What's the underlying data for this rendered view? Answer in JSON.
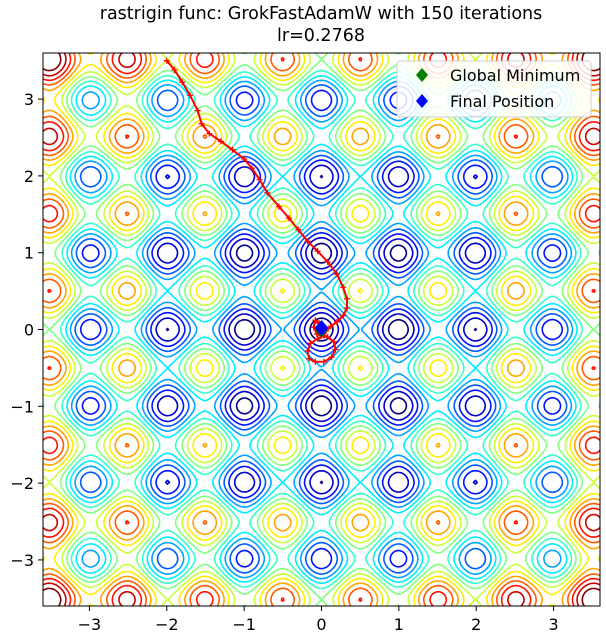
{
  "chart_data": {
    "type": "contour",
    "title": "rastrigin func: GrokFastAdamW with 150 iterations",
    "subtitle": "lr=0.2768",
    "xlabel": "",
    "ylabel": "",
    "xlim": [
      -3.6,
      3.6
    ],
    "ylim": [
      -3.6,
      3.6
    ],
    "xticks": [
      -3,
      -2,
      -1,
      0,
      1,
      2,
      3
    ],
    "yticks": [
      -3,
      -2,
      -1,
      0,
      1,
      2,
      3
    ],
    "xtick_labels": [
      "−3",
      "−2",
      "−1",
      "0",
      "1",
      "2",
      "3"
    ],
    "ytick_labels": [
      "−3",
      "−2",
      "−1",
      "0",
      "1",
      "2",
      "3"
    ],
    "grid": false,
    "function": "rastrigin",
    "colormap": "jet",
    "legend": {
      "position": "top-right",
      "entries": [
        {
          "label": "Global Minimum",
          "color": "#008000",
          "marker": "diamond"
        },
        {
          "label": "Final Position",
          "color": "#0000ff",
          "marker": "diamond"
        }
      ]
    },
    "series": [
      {
        "name": "Global Minimum",
        "type": "point",
        "color": "#008000",
        "x": [
          0
        ],
        "y": [
          0
        ]
      },
      {
        "name": "Final Position",
        "type": "point",
        "color": "#0000ff",
        "x": [
          0.0
        ],
        "y": [
          0.02
        ]
      },
      {
        "name": "trajectory",
        "type": "line",
        "color": "#ff0000",
        "x": [
          -2.0,
          -1.9,
          -1.8,
          -1.7,
          -1.6,
          -1.55,
          -1.45,
          -1.3,
          -1.15,
          -1.0,
          -0.9,
          -0.8,
          -0.7,
          -0.55,
          -0.42,
          -0.3,
          -0.18,
          -0.05,
          0.08,
          0.2,
          0.28,
          0.33,
          0.33,
          0.28,
          0.2,
          0.12,
          0.06,
          0.03,
          -0.05,
          -0.14,
          -0.18,
          -0.16,
          -0.08,
          0.03,
          0.13,
          0.18,
          0.16,
          0.08,
          0.0,
          -0.06,
          -0.1,
          -0.08,
          -0.03,
          0.0
        ],
        "y": [
          3.5,
          3.38,
          3.22,
          3.05,
          2.85,
          2.68,
          2.55,
          2.45,
          2.34,
          2.22,
          2.1,
          1.95,
          1.78,
          1.6,
          1.45,
          1.3,
          1.15,
          1.02,
          0.88,
          0.72,
          0.55,
          0.4,
          0.28,
          0.18,
          0.1,
          0.04,
          -0.02,
          -0.08,
          -0.12,
          -0.18,
          -0.28,
          -0.38,
          -0.42,
          -0.42,
          -0.36,
          -0.26,
          -0.16,
          -0.1,
          -0.08,
          -0.06,
          0.03,
          0.12,
          0.08,
          0.03
        ]
      }
    ]
  }
}
